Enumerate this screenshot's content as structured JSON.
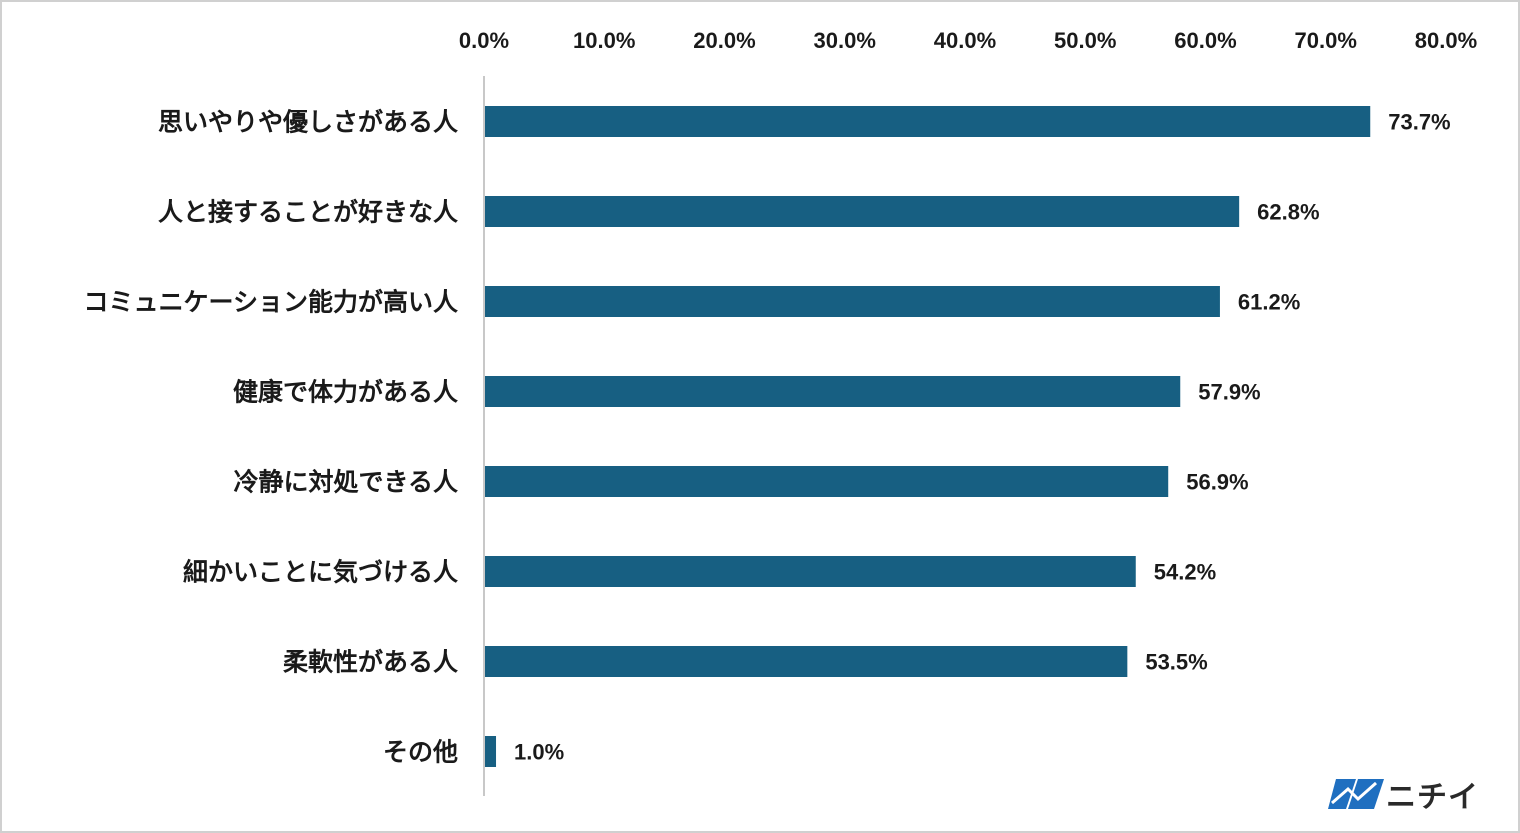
{
  "chart_data": {
    "type": "bar",
    "orientation": "horizontal",
    "categories": [
      "思いやりや優しさがある人",
      "人と接することが好きな人",
      "コミュニケーション能力が高い人",
      "健康で体力がある人",
      "冷静に対処できる人",
      "細かいことに気づける人",
      "柔軟性がある人",
      "その他"
    ],
    "values": [
      73.7,
      62.8,
      61.2,
      57.9,
      56.9,
      54.2,
      53.5,
      1.0
    ],
    "value_labels": [
      "73.7%",
      "62.8%",
      "61.2%",
      "57.9%",
      "56.9%",
      "54.2%",
      "53.5%",
      "1.0%"
    ],
    "x_ticks": [
      0,
      10,
      20,
      30,
      40,
      50,
      60,
      70,
      80
    ],
    "x_tick_labels": [
      "0.0%",
      "10.0%",
      "20.0%",
      "30.0%",
      "40.0%",
      "50.0%",
      "60.0%",
      "70.0%",
      "80.0%"
    ],
    "xlim": [
      0,
      80
    ],
    "x_axis_position": "top",
    "grid": false,
    "legend": "none",
    "bar_color": "#175f82",
    "title": "",
    "xlabel": "",
    "ylabel": ""
  },
  "logo": {
    "text": "ニチイ",
    "icon": "nichii-logo-mark",
    "color": "#1f6fc0"
  }
}
